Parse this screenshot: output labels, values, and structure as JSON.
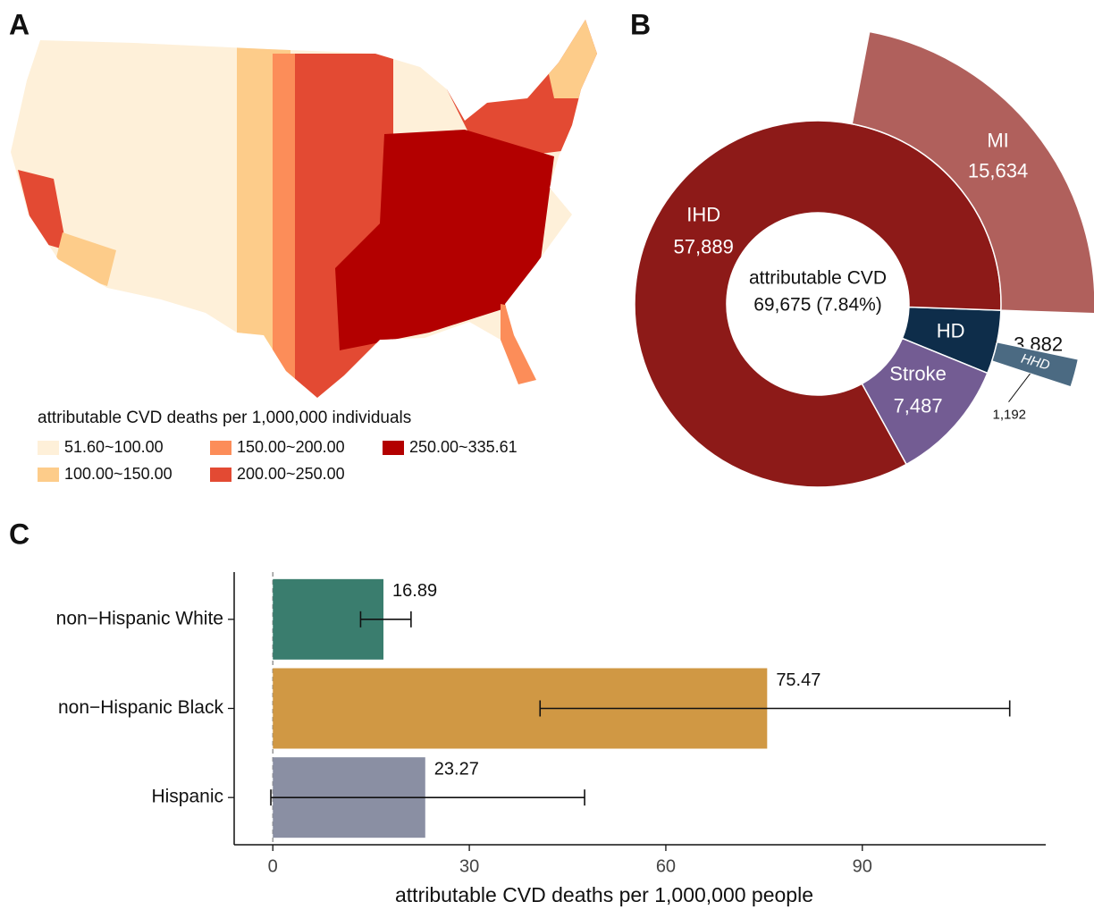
{
  "panels": [
    "A",
    "B",
    "C"
  ],
  "map": {
    "legend_title": "attributable CVD deaths per 1,000,000 individuals",
    "classes": [
      {
        "label": "51.60~100.00",
        "color": "#fef0d9"
      },
      {
        "label": "100.00~150.00",
        "color": "#fdcc8a"
      },
      {
        "label": "150.00~200.00",
        "color": "#fc8d59"
      },
      {
        "label": "200.00~250.00",
        "color": "#e34a33"
      },
      {
        "label": "250.00~335.61",
        "color": "#b30000"
      }
    ]
  },
  "chart_data": [
    {
      "type": "sunburst",
      "center_label": [
        "attributable CVD",
        "69,675 (7.84%)"
      ],
      "segments": [
        {
          "name": "HD",
          "value": 3882,
          "value_label": "3,882",
          "color": "#0e2d4a",
          "children": [
            {
              "name": "HHD",
              "value": 1192,
              "value_label": "1,192",
              "color": "#4b6a82"
            }
          ]
        },
        {
          "name": "Stroke",
          "value": 7487,
          "value_label": "7,487",
          "color": "#735c93",
          "children": []
        },
        {
          "name": "IHD",
          "value": 57889,
          "value_label": "57,889",
          "color": "#8d1a18",
          "children": [
            {
              "name": "MI",
              "value": 15634,
              "value_label": "15,634",
              "color": "#b0605c"
            }
          ]
        }
      ]
    },
    {
      "type": "hbar",
      "categories": [
        "non−Hispanic White",
        "non−Hispanic Black",
        "Hispanic"
      ],
      "values": [
        16.89,
        75.47,
        23.27
      ],
      "lower": [
        13.4,
        40.8,
        -0.3
      ],
      "upper": [
        21.1,
        112.5,
        47.6
      ],
      "colors": [
        "#3a7d6e",
        "#d09844",
        "#8a8fa3"
      ],
      "xlabel": "attributable CVD deaths per 1,000,000 people",
      "xlim": [
        -5.9,
        118
      ],
      "xticks": [
        0,
        30,
        60,
        90
      ],
      "vline": 0
    }
  ]
}
